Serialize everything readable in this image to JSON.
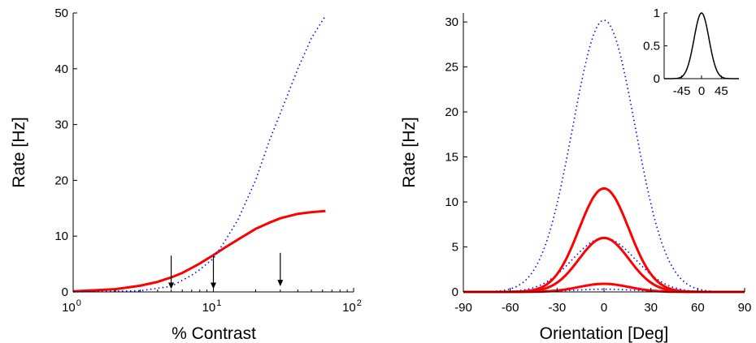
{
  "chart_data": [
    {
      "type": "line",
      "xlabel": "% Contrast",
      "ylabel": "Rate [Hz]",
      "xscale": "log",
      "xlim": [
        1,
        100
      ],
      "ylim": [
        0,
        50
      ],
      "xticks": [
        {
          "base": "10",
          "exp": "0",
          "value": 1
        },
        {
          "base": "10",
          "exp": "1",
          "value": 10
        },
        {
          "base": "10",
          "exp": "2",
          "value": 100
        }
      ],
      "yticks": [
        0,
        10,
        20,
        30,
        40,
        50
      ],
      "series": [
        {
          "style": "solid",
          "color": "#ff0000",
          "points": [
            [
              1,
              0.1
            ],
            [
              2,
              0.5
            ],
            [
              3,
              1.1
            ],
            [
              4,
              1.8
            ],
            [
              5,
              2.6
            ],
            [
              6,
              3.4
            ],
            [
              7,
              4.3
            ],
            [
              8,
              5.1
            ],
            [
              10,
              6.6
            ],
            [
              12,
              7.9
            ],
            [
              15,
              9.4
            ],
            [
              20,
              11.3
            ],
            [
              25,
              12.4
            ],
            [
              30,
              13.2
            ],
            [
              40,
              14.0
            ],
            [
              50,
              14.3
            ],
            [
              63,
              14.5
            ]
          ]
        },
        {
          "style": "dotted",
          "color": "#0000ff",
          "points": [
            [
              1,
              0.0
            ],
            [
              3,
              0.2
            ],
            [
              5,
              1.0
            ],
            [
              7,
              3.0
            ],
            [
              8,
              4.0
            ],
            [
              10,
              6.0
            ],
            [
              12,
              9.0
            ],
            [
              15,
              13.0
            ],
            [
              20,
              20.0
            ],
            [
              25,
              27.0
            ],
            [
              30,
              32.0
            ],
            [
              40,
              40.0
            ],
            [
              50,
              45.5
            ],
            [
              63,
              49.5
            ]
          ]
        }
      ],
      "annotations": [
        {
          "type": "arrow",
          "x": 5,
          "y_from": 6.5,
          "y_to": 0.5
        },
        {
          "type": "arrow",
          "x": 10,
          "y_from": 6.5,
          "y_to": 0.5
        },
        {
          "type": "arrow",
          "x": 30,
          "y_from": 7.0,
          "y_to": 1.0
        }
      ],
      "grid": false
    },
    {
      "type": "line",
      "xlabel": "Orientation [Deg]",
      "ylabel": "Rate [Hz]",
      "xlim": [
        -90,
        90
      ],
      "ylim": [
        0,
        31
      ],
      "xticks": [
        -90,
        -60,
        -30,
        0,
        30,
        60,
        90
      ],
      "yticks": [
        0,
        5,
        10,
        15,
        20,
        25,
        30
      ],
      "tuning_width_deg": 20,
      "series": [
        {
          "style": "dotted",
          "color": "#0000ff",
          "shape": "gaussian",
          "peak": 30.2,
          "sigma": 20
        },
        {
          "style": "dotted",
          "color": "#0000ff",
          "shape": "gaussian",
          "peak": 6.0,
          "sigma": 20
        },
        {
          "style": "dotted",
          "color": "#0000ff",
          "shape": "gaussian",
          "peak": 0.3,
          "sigma": 20
        },
        {
          "style": "solid",
          "color": "#ff0000",
          "shape": "gaussian",
          "peak": 11.5,
          "sigma": 16
        },
        {
          "style": "solid",
          "color": "#ff0000",
          "shape": "gaussian",
          "peak": 6.0,
          "sigma": 16
        },
        {
          "style": "solid",
          "color": "#ff0000",
          "shape": "gaussian",
          "peak": 0.9,
          "sigma": 16
        }
      ],
      "inset": {
        "type": "line",
        "xlim": [
          -85,
          85
        ],
        "ylim": [
          0,
          1
        ],
        "xticks": [
          -45,
          0,
          45
        ],
        "yticks": [
          0,
          0.5,
          1
        ],
        "series": [
          {
            "style": "solid",
            "color": "#000000",
            "shape": "gaussian",
            "peak": 1,
            "sigma": 17
          }
        ]
      },
      "grid": false
    }
  ]
}
